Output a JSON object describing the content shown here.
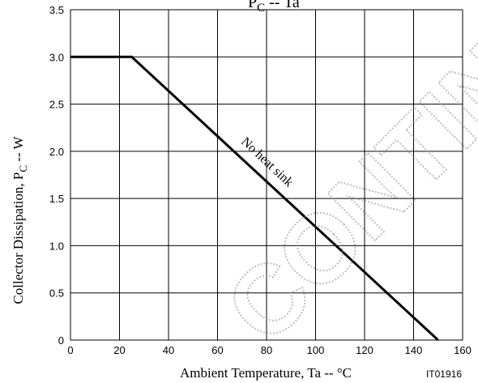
{
  "chart_data": {
    "type": "line",
    "title": "PC -- Ta",
    "title_main": "P",
    "title_sub": "C",
    "title_rest": " -- Ta",
    "xlabel": "Ambient Temperature, Ta  --  °C",
    "ylabel_main": "Collector Dissipation, P",
    "ylabel_sub": "C",
    "ylabel_rest": "  --  W",
    "xlim": [
      0,
      160
    ],
    "ylim": [
      0,
      3.5
    ],
    "x_ticks": [
      0,
      20,
      40,
      60,
      80,
      100,
      120,
      140,
      160
    ],
    "y_ticks": [
      0,
      0.5,
      1.0,
      1.5,
      2.0,
      2.5,
      3.0,
      3.5
    ],
    "y_tick_labels": [
      "0",
      "0.5",
      "1.0",
      "1.5",
      "2.0",
      "2.5",
      "3.0",
      "3.5"
    ],
    "grid": true,
    "series": [
      {
        "name": "No heat sink",
        "x": [
          0,
          25,
          150
        ],
        "y": [
          3.0,
          3.0,
          0
        ]
      }
    ],
    "annotation": "No heat sink",
    "code": "IT01916",
    "watermark": "CONTINUE",
    "colors": {
      "line": "#000000",
      "grid": "#000000"
    }
  }
}
